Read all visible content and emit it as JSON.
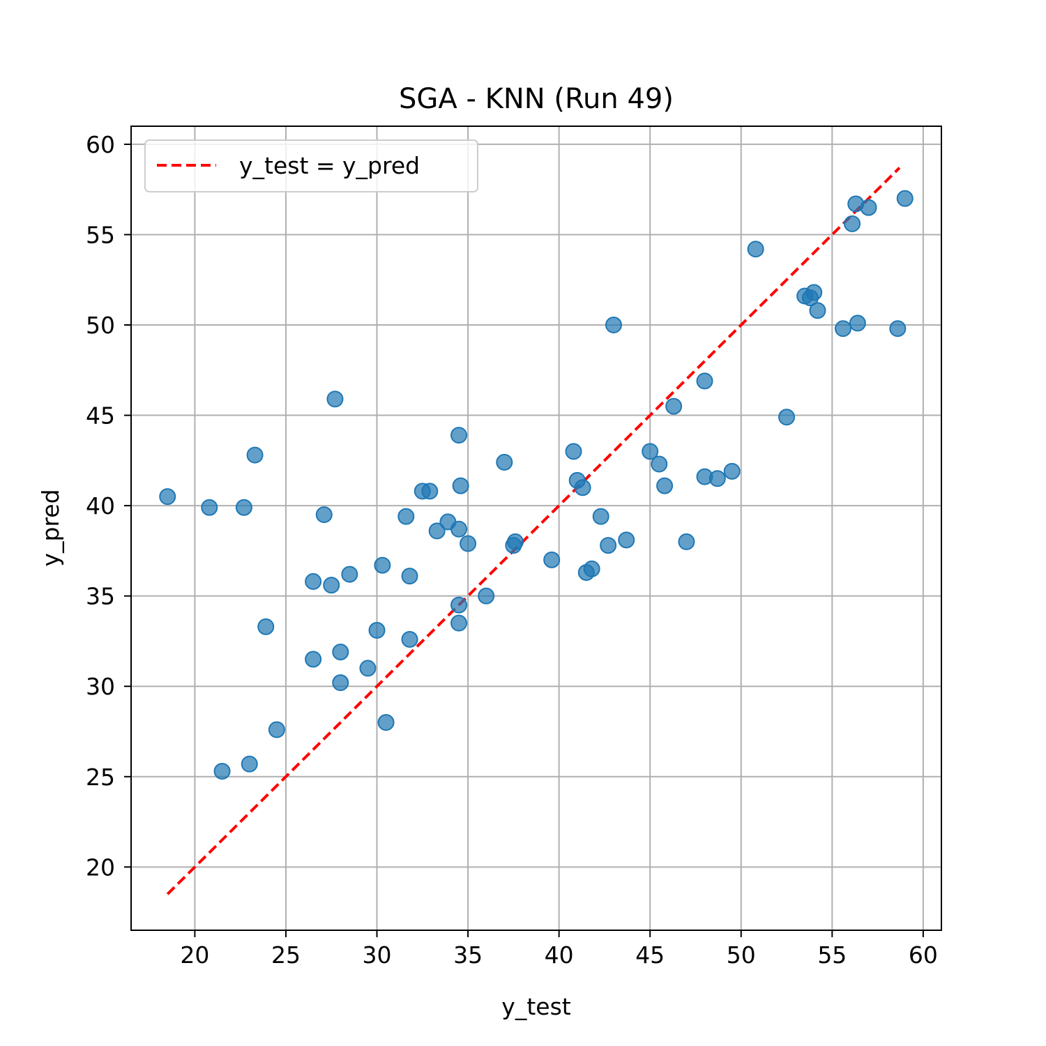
{
  "chart_data": {
    "type": "scatter",
    "title": "SGA - KNN (Run 49)",
    "xlabel": "y_test",
    "ylabel": "y_pred",
    "xlim": [
      16.5,
      61
    ],
    "ylim": [
      16.5,
      61
    ],
    "xticks": [
      20,
      25,
      30,
      35,
      40,
      45,
      50,
      55,
      60
    ],
    "yticks": [
      20,
      25,
      30,
      35,
      40,
      45,
      50,
      55,
      60
    ],
    "grid": true,
    "legend": {
      "position": "upper-left",
      "entries": [
        "y_test = y_pred"
      ]
    },
    "reference_line": {
      "name": "y_test = y_pred",
      "x": [
        18.5,
        58.7
      ],
      "y": [
        18.5,
        58.7
      ],
      "color": "#ff0000",
      "style": "dashed"
    },
    "series": [
      {
        "color": "#1f77b4",
        "points": [
          [
            18.5,
            40.5
          ],
          [
            20.8,
            39.9
          ],
          [
            22.7,
            39.9
          ],
          [
            23.3,
            42.8
          ],
          [
            23.9,
            33.3
          ],
          [
            21.5,
            25.3
          ],
          [
            23.0,
            25.7
          ],
          [
            24.5,
            27.6
          ],
          [
            26.5,
            35.8
          ],
          [
            26.5,
            31.5
          ],
          [
            27.1,
            39.5
          ],
          [
            27.5,
            35.6
          ],
          [
            27.7,
            45.9
          ],
          [
            28.0,
            31.9
          ],
          [
            28.0,
            30.2
          ],
          [
            28.5,
            36.2
          ],
          [
            29.5,
            31.0
          ],
          [
            30.0,
            33.1
          ],
          [
            30.3,
            36.7
          ],
          [
            30.5,
            28.0
          ],
          [
            31.6,
            39.4
          ],
          [
            31.8,
            36.1
          ],
          [
            31.8,
            32.6
          ],
          [
            32.5,
            40.8
          ],
          [
            32.9,
            40.8
          ],
          [
            33.3,
            38.6
          ],
          [
            33.9,
            39.1
          ],
          [
            34.5,
            38.7
          ],
          [
            34.5,
            43.9
          ],
          [
            34.6,
            41.1
          ],
          [
            34.5,
            34.5
          ],
          [
            34.5,
            33.5
          ],
          [
            35.0,
            37.9
          ],
          [
            36.0,
            35.0
          ],
          [
            37.0,
            42.4
          ],
          [
            37.5,
            37.8
          ],
          [
            37.6,
            38.0
          ],
          [
            39.6,
            37.0
          ],
          [
            40.8,
            43.0
          ],
          [
            41.0,
            41.4
          ],
          [
            41.3,
            41.0
          ],
          [
            41.5,
            36.3
          ],
          [
            41.8,
            36.5
          ],
          [
            42.3,
            39.4
          ],
          [
            42.7,
            37.8
          ],
          [
            43.0,
            50.0
          ],
          [
            43.7,
            38.1
          ],
          [
            45.0,
            43.0
          ],
          [
            45.5,
            42.3
          ],
          [
            45.8,
            41.1
          ],
          [
            46.3,
            45.5
          ],
          [
            47.0,
            38.0
          ],
          [
            48.0,
            46.9
          ],
          [
            48.0,
            41.6
          ],
          [
            48.7,
            41.5
          ],
          [
            49.5,
            41.9
          ],
          [
            50.8,
            54.2
          ],
          [
            52.5,
            44.9
          ],
          [
            53.5,
            51.6
          ],
          [
            53.8,
            51.5
          ],
          [
            54.0,
            51.8
          ],
          [
            54.2,
            50.8
          ],
          [
            55.6,
            49.8
          ],
          [
            56.1,
            55.6
          ],
          [
            56.3,
            56.7
          ],
          [
            56.4,
            50.1
          ],
          [
            57.0,
            56.5
          ],
          [
            58.6,
            49.8
          ],
          [
            59.0,
            57.0
          ]
        ]
      }
    ]
  }
}
